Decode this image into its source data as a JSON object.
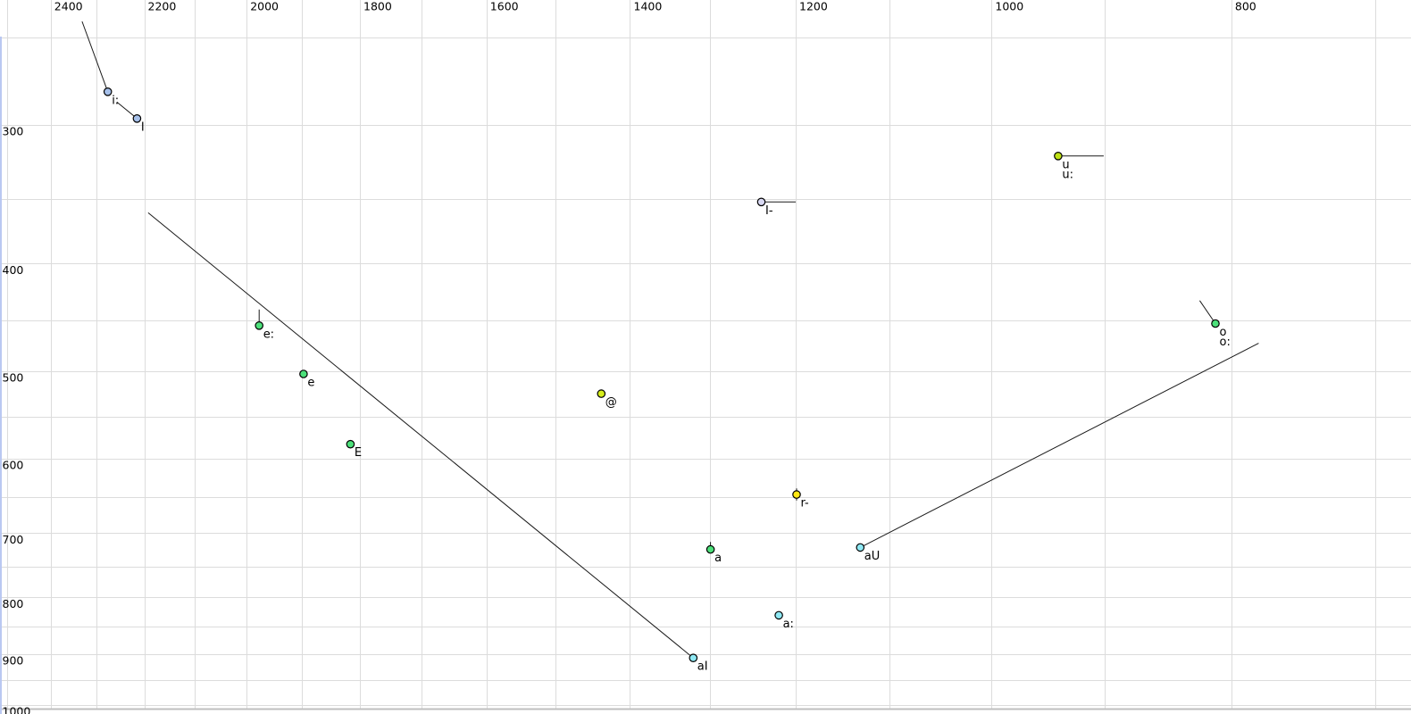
{
  "window": {
    "background": "#ffffff",
    "grid_color": "#dcdcdc",
    "bottom_border_color": "#bfbfbf",
    "left_edge_strip_color": "#bac8f1",
    "trajectory_color": "#1a1a1a",
    "point_border_color": "#000000"
  },
  "chart_data": {
    "type": "scatter",
    "title": "",
    "xlabel": "",
    "ylabel": "",
    "x_axis": {
      "scale": "log",
      "direction": "reversed-left-to-right",
      "tick_labels": [
        2400,
        2200,
        2000,
        1800,
        1600,
        1400,
        1200,
        1000,
        800
      ],
      "gridlines_hz": [
        2500,
        2400,
        2300,
        2200,
        2100,
        2000,
        1900,
        1800,
        1700,
        1600,
        1500,
        1400,
        1300,
        1200,
        1100,
        1000,
        900,
        800,
        700
      ],
      "range_hz": [
        2520,
        680
      ]
    },
    "y_axis": {
      "scale": "log",
      "direction": "increases-downward",
      "tick_labels": [
        300,
        400,
        500,
        600,
        700,
        800,
        900,
        1000
      ],
      "gridlines_hz": [
        250,
        300,
        350,
        400,
        450,
        500,
        550,
        600,
        650,
        700,
        750,
        800,
        850,
        900,
        950,
        1000
      ],
      "range_hz": [
        232,
        1019
      ]
    },
    "points": [
      {
        "label_lines": [
          "i:"
        ],
        "f2": 2276,
        "f1": 280,
        "fill": "#a6c0ea",
        "tail": [
          [
            2331,
            242
          ]
        ]
      },
      {
        "label_lines": [
          "I"
        ],
        "f2": 2215,
        "f1": 296,
        "fill": "#a6c0ea",
        "tail": [
          [
            2257,
            286
          ]
        ]
      },
      {
        "label_lines": [
          "u",
          "u:"
        ],
        "f2": 940,
        "f1": 320,
        "fill": "#bfe215",
        "tail": [
          [
            901,
            320
          ]
        ]
      },
      {
        "label_lines": [
          "I-"
        ],
        "f2": 1239,
        "f1": 352,
        "fill": "#d9d9f3",
        "tail": [
          [
            1200,
            352
          ]
        ]
      },
      {
        "label_lines": [
          "e:"
        ],
        "f2": 1977,
        "f1": 455,
        "fill": "#4ce07a",
        "tail": [
          [
            1977,
            440
          ]
        ]
      },
      {
        "label_lines": [
          "e"
        ],
        "f2": 1897,
        "f1": 503,
        "fill": "#4ce07a",
        "tail": []
      },
      {
        "label_lines": [
          "E"
        ],
        "f2": 1816,
        "f1": 582,
        "fill": "#4ce07a",
        "tail": []
      },
      {
        "label_lines": [
          "@"
        ],
        "f2": 1438,
        "f1": 524,
        "fill": "#d6ed1b",
        "tail": []
      },
      {
        "label_lines": [
          "r-"
        ],
        "f2": 1199,
        "f1": 646,
        "fill": "#ffe712",
        "tail": [
          [
            1199,
            638
          ],
          [
            1199,
            654
          ]
        ]
      },
      {
        "label_lines": [
          "a"
        ],
        "f2": 1299,
        "f1": 724,
        "fill": "#4ce07a",
        "tail": [
          [
            1299,
            713
          ],
          [
            1299,
            728
          ]
        ]
      },
      {
        "label_lines": [
          "aU"
        ],
        "f2": 1130,
        "f1": 721,
        "fill": "#8fe9f4",
        "tail": [
          [
            780,
            472
          ]
        ]
      },
      {
        "label_lines": [
          "a:"
        ],
        "f2": 1219,
        "f1": 830,
        "fill": "#8fe9f4",
        "tail": []
      },
      {
        "label_lines": [
          "aI"
        ],
        "f2": 1320,
        "f1": 907,
        "fill": "#8fe9f4",
        "tail": [
          [
            2192,
            360
          ]
        ]
      },
      {
        "label_lines": [
          "o",
          "o:"
        ],
        "f2": 812,
        "f1": 453,
        "fill": "#4ce07a",
        "tail": [
          [
            824,
            432
          ]
        ]
      }
    ]
  }
}
